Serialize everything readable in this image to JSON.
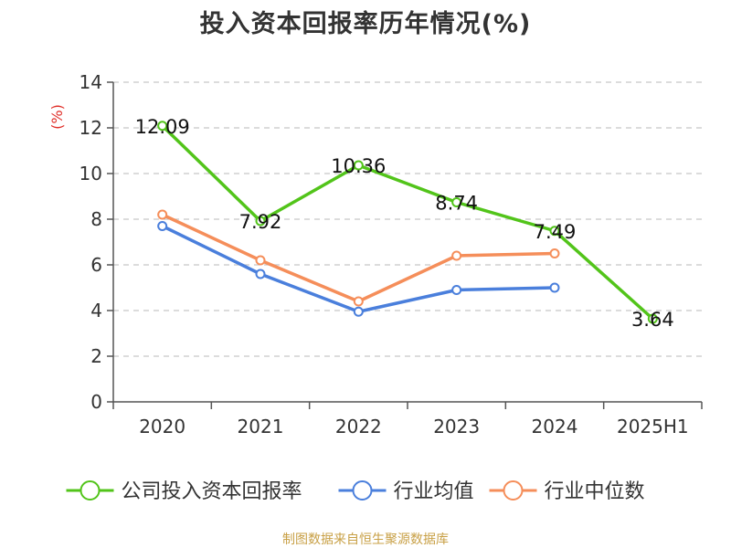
{
  "title": "投入资本回报率历年情况(%)",
  "footer": "制图数据来自恒生聚源数据库",
  "chart_data": {
    "type": "line",
    "categories": [
      "2020",
      "2021",
      "2022",
      "2023",
      "2024",
      "2025H1"
    ],
    "ylabel": "(%)",
    "ylim": [
      0,
      14
    ],
    "yticks": [
      0,
      2,
      4,
      6,
      8,
      10,
      12,
      14
    ],
    "grid": true,
    "legend_position": "bottom",
    "series": [
      {
        "name": "公司投入资本回报率",
        "color": "#52c41a",
        "values": [
          12.09,
          7.92,
          10.36,
          8.74,
          7.49,
          3.64
        ],
        "labels": [
          "12.09",
          "7.92",
          "10.36",
          "8.74",
          "7.49",
          "3.64"
        ]
      },
      {
        "name": "行业均值",
        "color": "#4a7fdc",
        "values": [
          7.7,
          5.6,
          3.95,
          4.9,
          5.0,
          null
        ]
      },
      {
        "name": "行业中位数",
        "color": "#f58e5a",
        "values": [
          8.2,
          6.2,
          4.4,
          6.4,
          6.5,
          null
        ]
      }
    ]
  }
}
